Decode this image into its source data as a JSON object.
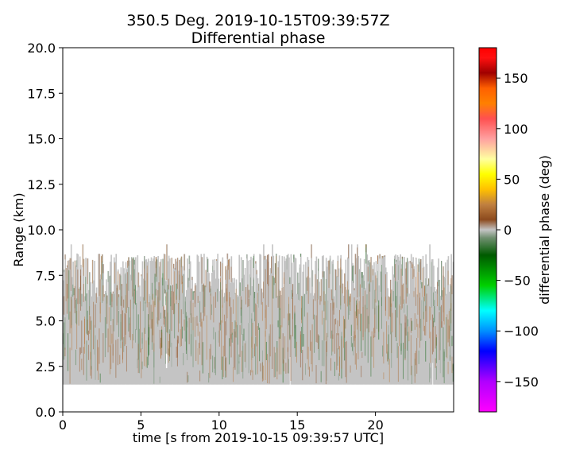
{
  "chart_data": {
    "type": "heatmap",
    "title": "350.5 Deg. 2019-10-15T09:39:57Z",
    "subtitle": "Differential phase",
    "xlabel": "time [s from 2019-10-15 09:39:57 UTC]",
    "ylabel": "Range (km)",
    "xlim": [
      0,
      25
    ],
    "ylim": [
      0,
      20
    ],
    "x_ticks": [
      "0",
      "5",
      "10",
      "15",
      "20"
    ],
    "x_tick_values": [
      0,
      5,
      10,
      15,
      20
    ],
    "y_ticks": [
      "0.0",
      "2.5",
      "5.0",
      "7.5",
      "10.0",
      "12.5",
      "15.0",
      "17.5",
      "20.0"
    ],
    "y_tick_values": [
      0,
      2.5,
      5,
      7.5,
      10,
      12.5,
      15,
      17.5,
      20
    ],
    "grid": false,
    "data_extent": {
      "time_start_s": 0,
      "time_end_s": 25,
      "range_min_km": 1.5,
      "range_max_km_typical": 8.5,
      "range_max_km_peak": 9.2
    },
    "dominant_value_deg": 0,
    "colorbar": {
      "label": "differential phase (deg)",
      "vmin": -180,
      "vmax": 180,
      "ticks": [
        "150",
        "100",
        "50",
        "0",
        "−50",
        "−100",
        "−150"
      ],
      "tick_values": [
        150,
        100,
        50,
        0,
        -50,
        -100,
        -150
      ],
      "colors": [
        {
          "v": -180,
          "c": "#ff00ff"
        },
        {
          "v": -150,
          "c": "#b000ff"
        },
        {
          "v": -120,
          "c": "#0000ff"
        },
        {
          "v": -100,
          "c": "#0090ff"
        },
        {
          "v": -80,
          "c": "#00ffff"
        },
        {
          "v": -55,
          "c": "#00d000"
        },
        {
          "v": -25,
          "c": "#005a00"
        },
        {
          "v": -8,
          "c": "#6f8f6f"
        },
        {
          "v": 0,
          "c": "#c4c4c4"
        },
        {
          "v": 10,
          "c": "#8c4a1e"
        },
        {
          "v": 25,
          "c": "#c08040"
        },
        {
          "v": 40,
          "c": "#ffc000"
        },
        {
          "v": 55,
          "c": "#ffff00"
        },
        {
          "v": 70,
          "c": "#ffffa0"
        },
        {
          "v": 90,
          "c": "#ffa0a0"
        },
        {
          "v": 110,
          "c": "#ff5050"
        },
        {
          "v": 125,
          "c": "#ff8000"
        },
        {
          "v": 140,
          "c": "#ff6000"
        },
        {
          "v": 155,
          "c": "#a00000"
        },
        {
          "v": 170,
          "c": "#ff1010"
        },
        {
          "v": 180,
          "c": "#ff0000"
        }
      ]
    }
  }
}
